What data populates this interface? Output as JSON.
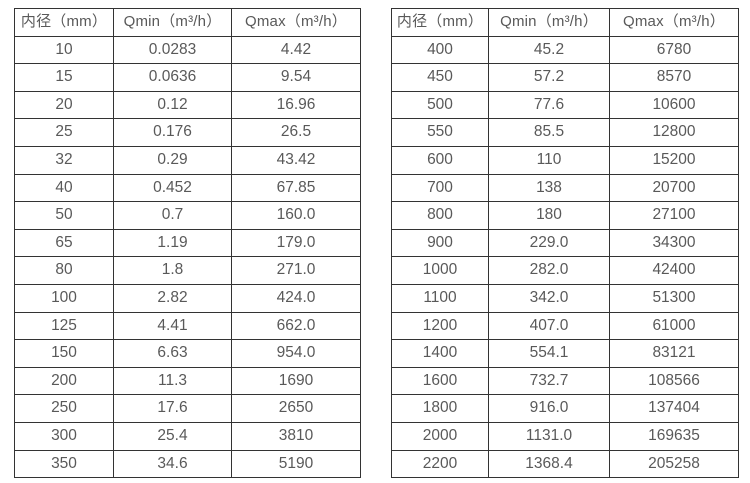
{
  "page": {
    "background_color": "#ffffff",
    "border_color": "#333333",
    "text_color": "#595959"
  },
  "tables": [
    {
      "name": "flow-table-small-diameters",
      "headers": [
        "内径（mm）",
        "Qmin（m³/h）",
        "Qmax（m³/h）"
      ],
      "rows": [
        [
          "10",
          "0.0283",
          "4.42"
        ],
        [
          "15",
          "0.0636",
          "9.54"
        ],
        [
          "20",
          "0.12",
          "16.96"
        ],
        [
          "25",
          "0.176",
          "26.5"
        ],
        [
          "32",
          "0.29",
          "43.42"
        ],
        [
          "40",
          "0.452",
          "67.85"
        ],
        [
          "50",
          "0.7",
          "160.0"
        ],
        [
          "65",
          "1.19",
          "179.0"
        ],
        [
          "80",
          "1.8",
          "271.0"
        ],
        [
          "100",
          "2.82",
          "424.0"
        ],
        [
          "125",
          "4.41",
          "662.0"
        ],
        [
          "150",
          "6.63",
          "954.0"
        ],
        [
          "200",
          "11.3",
          "1690"
        ],
        [
          "250",
          "17.6",
          "2650"
        ],
        [
          "300",
          "25.4",
          "3810"
        ],
        [
          "350",
          "34.6",
          "5190"
        ]
      ]
    },
    {
      "name": "flow-table-large-diameters",
      "headers": [
        "内径（mm）",
        "Qmin（m³/h）",
        "Qmax（m³/h）"
      ],
      "rows": [
        [
          "400",
          "45.2",
          "6780"
        ],
        [
          "450",
          "57.2",
          "8570"
        ],
        [
          "500",
          "77.6",
          "10600"
        ],
        [
          "550",
          "85.5",
          "12800"
        ],
        [
          "600",
          "110",
          "15200"
        ],
        [
          "700",
          "138",
          "20700"
        ],
        [
          "800",
          "180",
          "27100"
        ],
        [
          "900",
          "229.0",
          "34300"
        ],
        [
          "1000",
          "282.0",
          "42400"
        ],
        [
          "1100",
          "342.0",
          "51300"
        ],
        [
          "1200",
          "407.0",
          "61000"
        ],
        [
          "1400",
          "554.1",
          "83121"
        ],
        [
          "1600",
          "732.7",
          "108566"
        ],
        [
          "1800",
          "916.0",
          "137404"
        ],
        [
          "2000",
          "1131.0",
          "169635"
        ],
        [
          "2200",
          "1368.4",
          "205258"
        ]
      ]
    }
  ]
}
